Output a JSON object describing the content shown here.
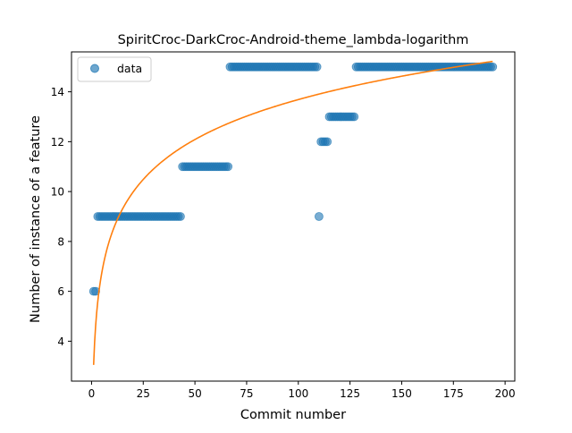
{
  "chart_data": {
    "type": "scatter",
    "title": "SpiritCroc-DarkCroc-Android-theme_lambda-logarithm",
    "xlabel": "Commit number",
    "ylabel": "Number of instance of a feature",
    "xlim": [
      -9.7,
      204.7
    ],
    "ylim": [
      2.4,
      15.6
    ],
    "xticks": [
      0,
      25,
      50,
      75,
      100,
      125,
      150,
      175,
      200
    ],
    "yticks": [
      4,
      6,
      8,
      10,
      12,
      14
    ],
    "legend": {
      "position": "top-left",
      "entries": [
        "data"
      ]
    },
    "grid": false,
    "series": [
      {
        "name": "data",
        "kind": "points",
        "color": "#1f77b4",
        "segments": [
          {
            "x_start": 1,
            "x_end": 2,
            "y": 6
          },
          {
            "x_start": 3,
            "x_end": 43,
            "y": 9
          },
          {
            "x_start": 44,
            "x_end": 66,
            "y": 11
          },
          {
            "x_start": 67,
            "x_end": 109,
            "y": 15
          },
          {
            "x_start": 110,
            "x_end": 110,
            "y": 9
          },
          {
            "x_start": 111,
            "x_end": 114,
            "y": 12
          },
          {
            "x_start": 115,
            "x_end": 127,
            "y": 13
          },
          {
            "x_start": 128,
            "x_end": 194,
            "y": 15
          }
        ]
      },
      {
        "name": "",
        "kind": "fit-curve",
        "color": "#ff7f0e",
        "model": "a + b*ln(x)",
        "a": 3.05,
        "b": 2.31,
        "x_range": [
          1,
          194
        ]
      }
    ]
  }
}
